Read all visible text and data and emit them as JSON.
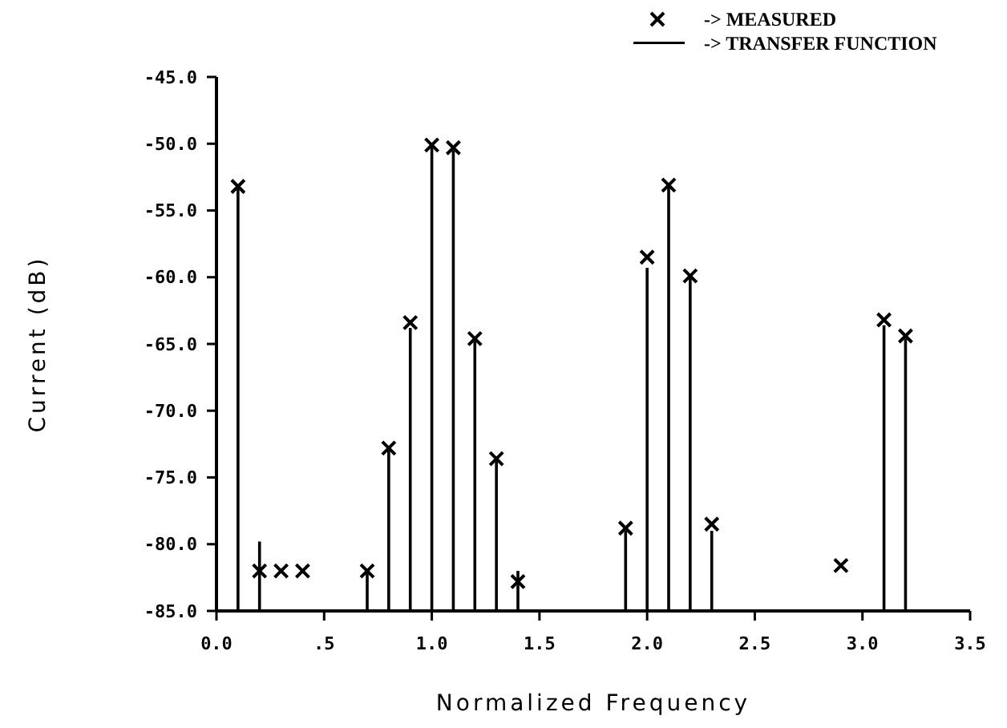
{
  "chart_data": {
    "type": "scatter",
    "xlabel": "Normalized Frequency",
    "ylabel": "Current (dB)",
    "x": [
      0.1,
      0.2,
      0.3,
      0.4,
      0.7,
      0.8,
      0.9,
      1.0,
      1.1,
      1.2,
      1.3,
      1.4,
      1.9,
      2.0,
      2.1,
      2.2,
      2.3,
      2.9,
      3.1,
      3.2
    ],
    "series": [
      {
        "name": "-> MEASURED",
        "marker": "cross",
        "color": "#000000",
        "values": [
          -53.2,
          -82,
          -82,
          -82,
          -82,
          -72.8,
          -63.4,
          -50.1,
          -50.3,
          -64.6,
          -73.6,
          -82.8,
          -78.8,
          -58.5,
          -53.1,
          -59.9,
          -78.5,
          -81.6,
          -63.2,
          -64.4
        ]
      },
      {
        "name": "-> TRANSFER FUNCTION",
        "type": "bar",
        "color": "#000000",
        "base": [
          -85,
          -85,
          null,
          null,
          -85,
          -85,
          -85,
          -85,
          -85,
          -85,
          -85,
          -85,
          -85,
          -85,
          -85,
          -85,
          -85,
          null,
          -85,
          -85
        ],
        "values": [
          31.8,
          5.2,
          null,
          null,
          3,
          12.2,
          21.2,
          34.9,
          34.5,
          20.2,
          11.4,
          3,
          6,
          25.7,
          31.9,
          25.1,
          6,
          null,
          21.4,
          20.4
        ]
      }
    ],
    "xlim": [
      0,
      3.5
    ],
    "xticks": [
      {
        "value": 0,
        "label": "0.0"
      },
      {
        "value": 0.5,
        "label": ".5"
      },
      {
        "value": 1,
        "label": "1.0"
      },
      {
        "value": 1.5,
        "label": "1.5"
      },
      {
        "value": 2,
        "label": "2.0"
      },
      {
        "value": 2.5,
        "label": "2.5"
      },
      {
        "value": 3,
        "label": "3.0"
      },
      {
        "value": 3.5,
        "label": "3.5"
      }
    ],
    "ylim": [
      -85,
      -45
    ],
    "yticks": [
      {
        "value": -45,
        "label": "-45.0"
      },
      {
        "value": -50,
        "label": "-50.0"
      },
      {
        "value": -55,
        "label": "-55.0"
      },
      {
        "value": -60,
        "label": "-60.0"
      },
      {
        "value": -65,
        "label": "-65.0"
      },
      {
        "value": -70,
        "label": "-70.0"
      },
      {
        "value": -75,
        "label": "-75.0"
      },
      {
        "value": -80,
        "label": "-80.0"
      },
      {
        "value": -85,
        "label": "-85.0"
      }
    ],
    "legend": "top right"
  }
}
